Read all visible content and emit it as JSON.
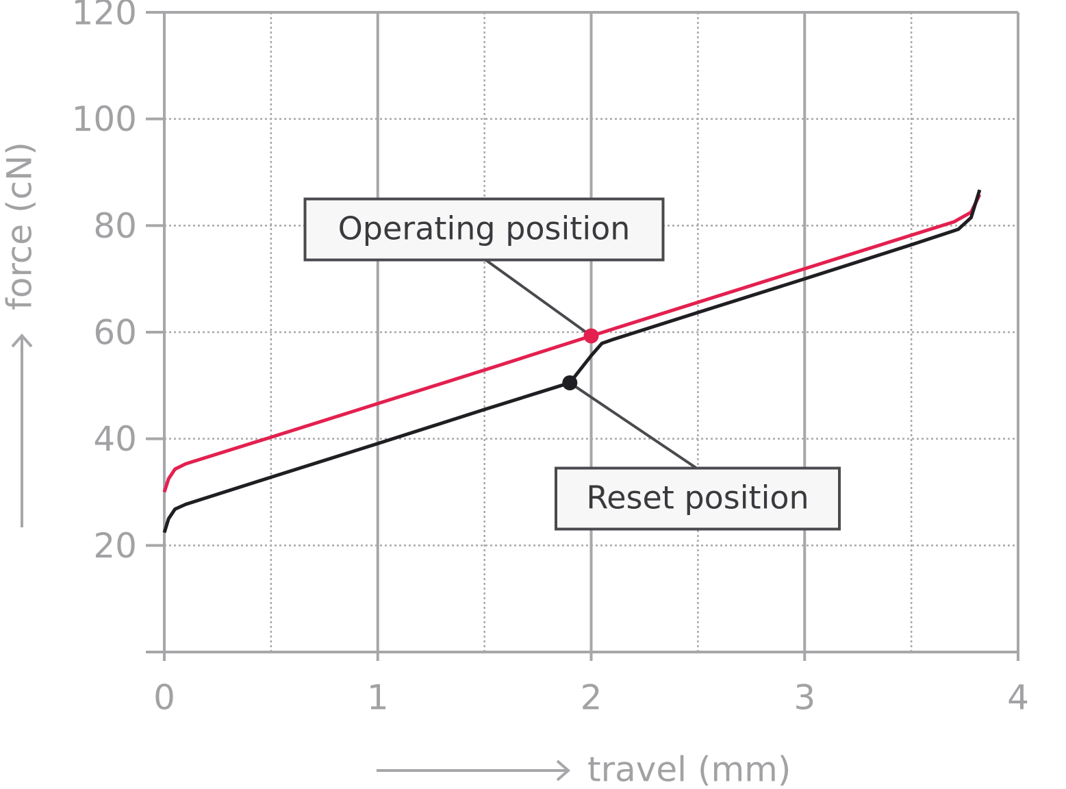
{
  "chart_data": {
    "type": "line",
    "xlabel": "travel (mm)",
    "ylabel": "force (cN)",
    "xlim": [
      0,
      4
    ],
    "ylim": [
      0,
      120
    ],
    "xticks": [
      0,
      1,
      2,
      3,
      4
    ],
    "yticks": [
      20,
      40,
      60,
      80,
      100,
      120
    ],
    "xminorticks": [
      0.5,
      1.5,
      2.5,
      3.5
    ],
    "grid": true,
    "series": [
      {
        "color": "#e3204f",
        "x": [
          0,
          0.02,
          0.05,
          0.1,
          0.5,
          1,
          1.5,
          2,
          2.5,
          3,
          3.5,
          3.7,
          3.78,
          3.82
        ],
        "values": [
          30,
          32.5,
          34.3,
          35.3,
          40.3,
          46.6,
          52.9,
          59.3,
          65.6,
          71.9,
          78.2,
          80.7,
          82.5,
          85.8
        ]
      },
      {
        "color": "#1f1e22",
        "x": [
          0,
          0.02,
          0.05,
          0.1,
          0.5,
          1,
          1.5,
          1.9,
          2.0,
          2.05,
          2.1,
          2.5,
          3,
          3.5,
          3.72,
          3.78,
          3.82
        ],
        "values": [
          22.4,
          25,
          26.8,
          27.7,
          32.8,
          39.1,
          45.5,
          50.5,
          55.6,
          57.9,
          58.6,
          63.7,
          70,
          76.4,
          79.3,
          81.5,
          86.7
        ]
      }
    ],
    "annotations": [
      {
        "text": "Operating position",
        "x": 2,
        "y": 59.3,
        "color": "#e3204f"
      },
      {
        "text": "Reset position",
        "x": 1.9,
        "y": 50.5,
        "color": "#1f1e22"
      }
    ]
  }
}
